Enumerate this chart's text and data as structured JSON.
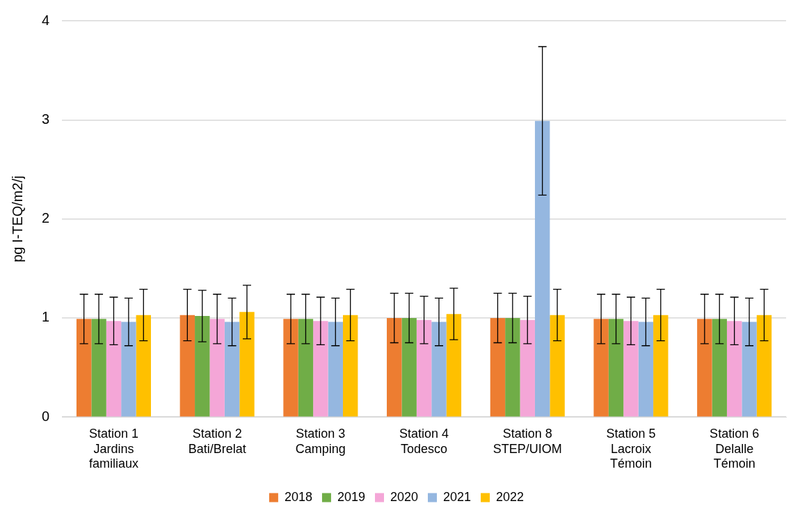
{
  "chart_data": {
    "type": "bar",
    "ylabel": "pg I-TEQ/m2/j",
    "categories": [
      "Station 1\nJardins\nfamiliaux",
      "Station 2\nBati/Brelat",
      "Station 3\nCamping",
      "Station 4\nTodesco",
      "Station 8\nSTEP/UIOM",
      "Station 5\nLacroix\nTémoin",
      "Station 6\nDelalle\nTémoin"
    ],
    "series": [
      {
        "name": "2018",
        "color": "#ed7d31",
        "values": [
          0.99,
          1.03,
          0.99,
          1.0,
          1.0,
          0.99,
          0.99
        ],
        "errors": [
          0.25,
          0.26,
          0.25,
          0.25,
          0.25,
          0.25,
          0.25
        ]
      },
      {
        "name": "2019",
        "color": "#70ad47",
        "values": [
          0.99,
          1.02,
          0.99,
          1.0,
          1.0,
          0.99,
          0.99
        ],
        "errors": [
          0.25,
          0.26,
          0.25,
          0.25,
          0.25,
          0.25,
          0.25
        ]
      },
      {
        "name": "2020",
        "color": "#f4a6d7",
        "values": [
          0.97,
          0.99,
          0.97,
          0.98,
          0.98,
          0.97,
          0.97
        ],
        "errors": [
          0.24,
          0.25,
          0.24,
          0.24,
          0.24,
          0.24,
          0.24
        ]
      },
      {
        "name": "2021",
        "color": "#95b7e0",
        "values": [
          0.96,
          0.96,
          0.96,
          0.96,
          2.99,
          0.96,
          0.96
        ],
        "errors": [
          0.24,
          0.24,
          0.24,
          0.24,
          0.75,
          0.24,
          0.24
        ]
      },
      {
        "name": "2022",
        "color": "#ffc000",
        "values": [
          1.03,
          1.06,
          1.03,
          1.04,
          1.03,
          1.03,
          1.03
        ],
        "errors": [
          0.26,
          0.27,
          0.26,
          0.26,
          0.26,
          0.26,
          0.26
        ]
      }
    ],
    "ylim": [
      0,
      4
    ],
    "yticks": [
      0,
      1,
      2,
      3,
      4
    ],
    "grid": "y",
    "legend": "bottom"
  }
}
